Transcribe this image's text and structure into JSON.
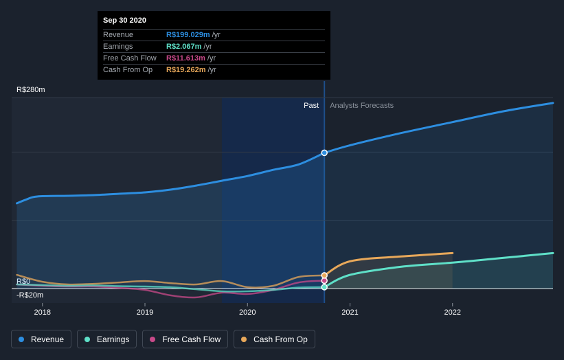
{
  "chart_data": {
    "type": "line",
    "x_ticks": [
      "2018",
      "2019",
      "2020",
      "2021",
      "2022"
    ],
    "xlim": [
      2017.7,
      2022.98
    ],
    "ylim": [
      -20,
      280
    ],
    "y_tick_labels": [
      {
        "value": 280,
        "label": "R$280m"
      },
      {
        "value": 0,
        "label": "R$0"
      },
      {
        "value": -20,
        "label": "-R$20m"
      }
    ],
    "divider_x": 2020.75,
    "highlight_start_x": 2019.75,
    "past_label": "Past",
    "forecast_label": "Analysts Forecasts",
    "series": [
      {
        "name": "Revenue",
        "color": "#2d8ee0",
        "past": [
          [
            2017.75,
            125
          ],
          [
            2017.85,
            131
          ],
          [
            2017.95,
            135
          ],
          [
            2018.25,
            136
          ],
          [
            2018.5,
            137
          ],
          [
            2018.75,
            139
          ],
          [
            2019.0,
            141
          ],
          [
            2019.25,
            145
          ],
          [
            2019.5,
            151
          ],
          [
            2019.75,
            158
          ],
          [
            2020.0,
            165
          ],
          [
            2020.25,
            174
          ],
          [
            2020.5,
            182
          ],
          [
            2020.75,
            199.029
          ]
        ],
        "forecast": [
          [
            2020.75,
            199.029
          ],
          [
            2021.0,
            210
          ],
          [
            2021.5,
            228
          ],
          [
            2022.0,
            244
          ],
          [
            2022.5,
            260
          ],
          [
            2022.98,
            272
          ]
        ]
      },
      {
        "name": "Earnings",
        "color": "#5fe0c8",
        "past": [
          [
            2017.75,
            6
          ],
          [
            2018.0,
            5
          ],
          [
            2018.25,
            4
          ],
          [
            2018.5,
            4.5
          ],
          [
            2018.75,
            3.5
          ],
          [
            2019.0,
            3
          ],
          [
            2019.25,
            2
          ],
          [
            2019.5,
            -1
          ],
          [
            2019.75,
            -4
          ],
          [
            2020.0,
            -4
          ],
          [
            2020.25,
            -2
          ],
          [
            2020.5,
            1.5
          ],
          [
            2020.75,
            2.067
          ]
        ],
        "forecast": [
          [
            2020.75,
            2.067
          ],
          [
            2021.0,
            20
          ],
          [
            2021.5,
            32
          ],
          [
            2022.0,
            38
          ],
          [
            2022.5,
            45
          ],
          [
            2022.98,
            52
          ]
        ]
      },
      {
        "name": "Free Cash Flow",
        "color": "#c94a8a",
        "past": [
          [
            2017.75,
            6
          ],
          [
            2018.0,
            4
          ],
          [
            2018.25,
            3
          ],
          [
            2018.5,
            3
          ],
          [
            2018.75,
            1
          ],
          [
            2019.0,
            -2
          ],
          [
            2019.25,
            -10
          ],
          [
            2019.5,
            -13
          ],
          [
            2019.75,
            -6
          ],
          [
            2020.0,
            -8
          ],
          [
            2020.25,
            -2
          ],
          [
            2020.5,
            9
          ],
          [
            2020.75,
            11.613
          ]
        ],
        "forecast": []
      },
      {
        "name": "Cash From Op",
        "color": "#e8a85a",
        "past": [
          [
            2017.75,
            20
          ],
          [
            2018.0,
            10
          ],
          [
            2018.25,
            6
          ],
          [
            2018.5,
            7
          ],
          [
            2018.75,
            9
          ],
          [
            2019.0,
            11
          ],
          [
            2019.25,
            8
          ],
          [
            2019.5,
            6
          ],
          [
            2019.75,
            11
          ],
          [
            2020.0,
            2
          ],
          [
            2020.25,
            4
          ],
          [
            2020.5,
            17
          ],
          [
            2020.75,
            19.262
          ]
        ],
        "forecast": [
          [
            2020.75,
            19.262
          ],
          [
            2021.0,
            40
          ],
          [
            2021.5,
            47
          ],
          [
            2022.0,
            52
          ]
        ]
      }
    ]
  },
  "tooltip": {
    "title": "Sep 30 2020",
    "rows": [
      {
        "name": "Revenue",
        "value": "R$199.029m",
        "unit": "/yr",
        "color": "#2d8ee0"
      },
      {
        "name": "Earnings",
        "value": "R$2.067m",
        "unit": "/yr",
        "color": "#5fe0c8"
      },
      {
        "name": "Free Cash Flow",
        "value": "R$11.613m",
        "unit": "/yr",
        "color": "#c94a8a"
      },
      {
        "name": "Cash From Op",
        "value": "R$19.262m",
        "unit": "/yr",
        "color": "#e8a85a"
      }
    ]
  },
  "legend": [
    {
      "label": "Revenue",
      "color": "#2d8ee0"
    },
    {
      "label": "Earnings",
      "color": "#5fe0c8"
    },
    {
      "label": "Free Cash Flow",
      "color": "#c94a8a"
    },
    {
      "label": "Cash From Op",
      "color": "#e8a85a"
    }
  ]
}
